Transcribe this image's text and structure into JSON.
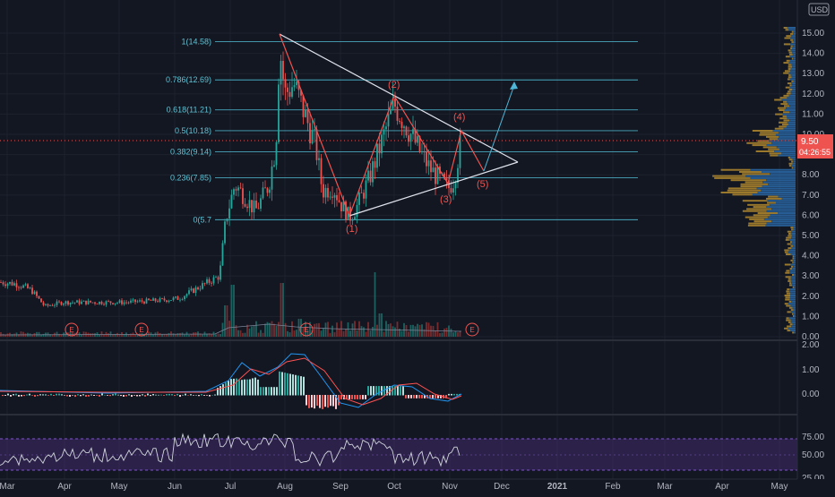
{
  "header": {
    "currency": "USD"
  },
  "colors": {
    "background": "#131722",
    "grid": "#1e222d",
    "up": "#26a69a",
    "down": "#ef5350",
    "fib": "#48a9be",
    "triangle": "#e0e3eb",
    "macd_line": "#2196f3",
    "signal_line": "#ff5252",
    "rsi": "#d1d4dc",
    "rsi_band": "#4a2f7a",
    "volume_profile_up": "#2a6aa8",
    "volume_profile_down": "#b38a2e",
    "price_label": "#ef5350"
  },
  "price_axis": {
    "ticks": [
      "15.00",
      "14.00",
      "13.00",
      "12.00",
      "11.00",
      "10.00",
      "9.00",
      "8.00",
      "7.00",
      "6.00",
      "5.00",
      "4.00",
      "3.00",
      "2.00",
      "1.00",
      "0.00"
    ],
    "top_value": "1"
  },
  "macd_axis": {
    "ticks": [
      "2.00",
      "1.00",
      "0.00"
    ]
  },
  "rsi_axis": {
    "ticks": [
      "75.00",
      "50.00",
      "25.00"
    ]
  },
  "time_axis": {
    "labels": [
      "Mar",
      "Apr",
      "May",
      "Jun",
      "Jul",
      "Aug",
      "Sep",
      "Oct",
      "Nov",
      "Dec",
      "2021",
      "Feb",
      "Mar",
      "Apr",
      "May"
    ]
  },
  "current_price": {
    "value": "9.50",
    "countdown": "04:26:55"
  },
  "fib_levels": [
    {
      "label": "1(14.58)",
      "value": 14.58
    },
    {
      "label": "0.786(12.69)",
      "value": 12.69
    },
    {
      "label": "0.618(11.21)",
      "value": 11.21
    },
    {
      "label": "0.5(10.18)",
      "value": 10.18
    },
    {
      "label": "0.382(9.14)",
      "value": 9.14
    },
    {
      "label": "0.236(7.85)",
      "value": 7.85
    },
    {
      "label": "0(5.7",
      "value": 5.78
    }
  ],
  "waves": [
    {
      "label": "(1)",
      "value": 5.78
    },
    {
      "label": "(2)",
      "value": 11.6
    },
    {
      "label": "(3)",
      "value": 7.25
    },
    {
      "label": "(4)",
      "value": 9.9
    },
    {
      "label": "(5)",
      "value": 8.0
    }
  ],
  "earnings_marker": "E",
  "chart_data": {
    "type": "candlestick",
    "symbol_currency": "USD",
    "x_range": [
      "Mar",
      "May"
    ],
    "price_ylim": [
      0,
      15
    ],
    "price_series": [
      [
        "Mar",
        2.6
      ],
      [
        "Mar",
        2.9
      ],
      [
        "Mar",
        2.4
      ],
      [
        "Apr",
        1.5
      ],
      [
        "Apr",
        1.7
      ],
      [
        "Apr",
        1.8
      ],
      [
        "May",
        1.7
      ],
      [
        "May",
        1.8
      ],
      [
        "May",
        1.7
      ],
      [
        "Jun",
        1.9
      ],
      [
        "Jun",
        2.4
      ],
      [
        "Jun",
        3.1
      ],
      [
        "Jul",
        6.2
      ],
      [
        "Jul",
        7.5
      ],
      [
        "Jul",
        6.6
      ],
      [
        "Jul",
        7.4
      ],
      [
        "Aug",
        14.5
      ],
      [
        "Aug",
        12.2
      ],
      [
        "Aug",
        10.6
      ],
      [
        "Aug",
        8.8
      ],
      [
        "Sep",
        7.0
      ],
      [
        "Sep",
        6.4
      ],
      [
        "Sep",
        5.8
      ],
      [
        "Sep",
        7.2
      ],
      [
        "Oct",
        9.3
      ],
      [
        "Oct",
        11.6
      ],
      [
        "Oct",
        10.3
      ],
      [
        "Oct",
        9.2
      ],
      [
        "Nov",
        7.3
      ],
      [
        "Nov",
        8.1
      ],
      [
        "Nov",
        9.6
      ]
    ],
    "current_price": 9.5,
    "fibonacci": [
      {
        "ratio": 1,
        "value": 14.58
      },
      {
        "ratio": 0.786,
        "value": 12.69
      },
      {
        "ratio": 0.618,
        "value": 11.21
      },
      {
        "ratio": 0.5,
        "value": 10.18
      },
      {
        "ratio": 0.382,
        "value": 9.14
      },
      {
        "ratio": 0.236,
        "value": 7.85
      },
      {
        "ratio": 0,
        "value": 5.78
      }
    ],
    "elliott_waves": [
      {
        "label": "(1)",
        "month": "Sep",
        "value": 5.78
      },
      {
        "label": "(2)",
        "month": "Oct",
        "value": 11.6
      },
      {
        "label": "(3)",
        "month": "Nov",
        "value": 7.25
      },
      {
        "label": "(4)",
        "month": "Nov",
        "value": 9.9
      },
      {
        "label": "(5)",
        "month": "Dec",
        "value": 8.0
      }
    ],
    "macd": {
      "ylim": [
        -0.5,
        2.0
      ]
    },
    "rsi": {
      "ylim": [
        25,
        75
      ]
    },
    "grid": true
  }
}
